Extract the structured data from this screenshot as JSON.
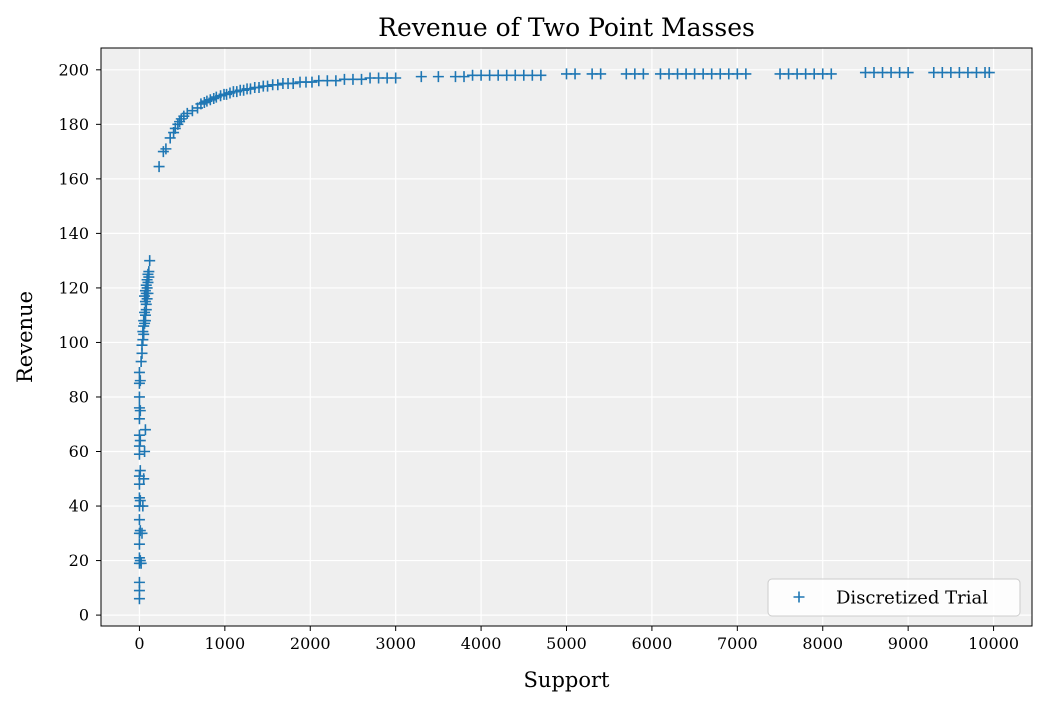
{
  "chart_data": {
    "type": "scatter",
    "title": "Revenue of Two Point Masses",
    "xlabel": "Support",
    "ylabel": "Revenue",
    "xlim": [
      -450,
      10450
    ],
    "ylim": [
      -4,
      208
    ],
    "xticks": [
      0,
      1000,
      2000,
      3000,
      4000,
      5000,
      6000,
      7000,
      8000,
      9000,
      10000
    ],
    "yticks": [
      0,
      20,
      40,
      60,
      80,
      100,
      120,
      140,
      160,
      180,
      200
    ],
    "grid": true,
    "legend_position": "lower-right",
    "series": [
      {
        "name": "Discretized Trial",
        "marker": "plus",
        "color": "#1f77b4",
        "x": [
          0,
          0,
          0,
          0,
          0,
          0,
          0,
          0,
          0,
          0,
          0,
          0,
          0,
          0,
          0,
          0,
          0,
          0,
          0,
          0,
          10,
          10,
          10,
          10,
          10,
          10,
          10,
          20,
          30,
          30,
          40,
          50,
          50,
          60,
          70,
          70,
          80,
          80,
          90,
          100,
          40,
          50,
          60,
          70,
          80,
          90,
          100,
          110,
          60,
          70,
          80,
          90,
          100,
          110,
          120,
          20,
          30,
          40,
          50,
          60,
          70,
          230,
          280,
          310,
          360,
          400,
          420,
          450,
          470,
          490,
          520,
          560,
          620,
          680,
          720,
          760,
          790,
          830,
          870,
          900,
          950,
          990,
          1020,
          1060,
          1100,
          1140,
          1180,
          1220,
          1260,
          1300,
          1350,
          1400,
          1450,
          1500,
          1560,
          1620,
          1680,
          1740,
          1800,
          1880,
          1950,
          2020,
          2100,
          2200,
          2300,
          2400,
          2500,
          2600,
          2700,
          2800,
          2900,
          3000,
          3300,
          3500,
          3700,
          3800,
          3900,
          4000,
          4100,
          4200,
          4300,
          4400,
          4500,
          4600,
          4700,
          5000,
          5100,
          5300,
          5400,
          5700,
          5800,
          5900,
          6100,
          6200,
          6300,
          6400,
          6500,
          6600,
          6700,
          6800,
          6900,
          7000,
          7100,
          7500,
          7600,
          7700,
          7800,
          7900,
          8000,
          8100,
          8500,
          8600,
          8700,
          8800,
          8900,
          9000,
          9300,
          9400,
          9500,
          9600,
          9700,
          9800,
          9900,
          9950
        ],
        "y": [
          6,
          9,
          12,
          19,
          21,
          26,
          30,
          35,
          40,
          43,
          48,
          51,
          59,
          62,
          66,
          72,
          76,
          80,
          85,
          89,
          20,
          31,
          42,
          53,
          64,
          75,
          86,
          93,
          96,
          99,
          101,
          103,
          106,
          107,
          108,
          110,
          112,
          114,
          116,
          118,
          104,
          108,
          111,
          115,
          118,
          120,
          122,
          124,
          117,
          119,
          121,
          123,
          125,
          126,
          130,
          19,
          30,
          40,
          50,
          60,
          68,
          164.5,
          170,
          171,
          175,
          177,
          178.5,
          180,
          181,
          182,
          183,
          184,
          185,
          186,
          187.5,
          188,
          188.5,
          189,
          189.5,
          190,
          190.5,
          191,
          191,
          191.5,
          192,
          192,
          192.5,
          192.5,
          193,
          193,
          193.5,
          193.5,
          194,
          194,
          194.5,
          194.5,
          195,
          195,
          195,
          195.5,
          195.5,
          195.5,
          196,
          196,
          196,
          196.5,
          196.5,
          196.5,
          197,
          197,
          197,
          197,
          197.5,
          197.5,
          197.5,
          197.5,
          198,
          198,
          198,
          198,
          198,
          198,
          198,
          198,
          198,
          198.5,
          198.5,
          198.5,
          198.5,
          198.5,
          198.5,
          198.5,
          198.5,
          198.5,
          198.5,
          198.5,
          198.5,
          198.5,
          198.5,
          198.5,
          198.5,
          198.5,
          198.5,
          198.5,
          198.5,
          198.5,
          198.5,
          198.5,
          198.5,
          198.5,
          199,
          199,
          199,
          199,
          199,
          199,
          199,
          199,
          199,
          199,
          199,
          199,
          199,
          199
        ]
      }
    ]
  }
}
